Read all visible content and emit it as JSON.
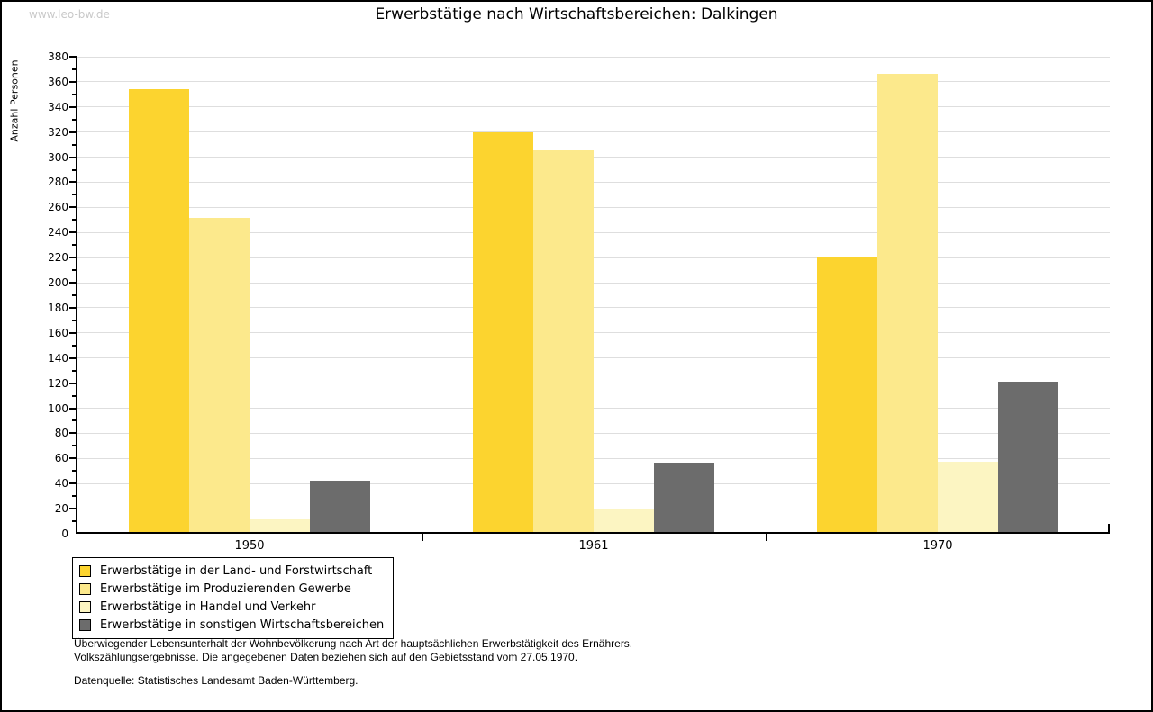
{
  "watermark": "www.leo-bw.de",
  "chart_data": {
    "type": "bar",
    "title": "Erwerbstätige nach Wirtschaftsbereichen: Dalkingen",
    "xlabel": "",
    "ylabel": "Anzahl Personen",
    "categories": [
      "1950",
      "1961",
      "1970"
    ],
    "series": [
      {
        "name": "Erwerbstätige in der Land- und Forstwirtschaft",
        "color": "#FCD42F",
        "values": [
          353,
          318,
          219
        ]
      },
      {
        "name": "Erwerbstätige im Produzierenden Gewerbe",
        "color": "#FCE98C",
        "values": [
          250,
          304,
          365
        ]
      },
      {
        "name": "Erwerbstätige in Handel und Verkehr",
        "color": "#FCF5C2",
        "values": [
          10,
          18,
          56
        ]
      },
      {
        "name": "Erwerbstätige in sonstigen Wirtschaftsbereichen",
        "color": "#6C6C6C",
        "values": [
          41,
          55,
          120
        ]
      }
    ],
    "ylim": [
      0,
      380
    ],
    "ytick_step": 20,
    "minor_tick_step": 10,
    "grid": true,
    "legend_position": "bottom-left"
  },
  "footer": {
    "line1": "Überwiegender Lebensunterhalt der Wohnbevölkerung nach Art der hauptsächlichen Erwerbstätigkeit des Ernährers.",
    "line2": "Volkszählungsergebnisse. Die angegebenen Daten beziehen sich auf den Gebietsstand vom 27.05.1970.",
    "source": "Datenquelle: Statistisches Landesamt Baden-Württemberg."
  },
  "colors": {
    "background": "#FFFFFF",
    "frame_border": "#000000",
    "axis": "#000000",
    "gridline": "#DEDEDE",
    "watermark": "#C9C9C9"
  }
}
